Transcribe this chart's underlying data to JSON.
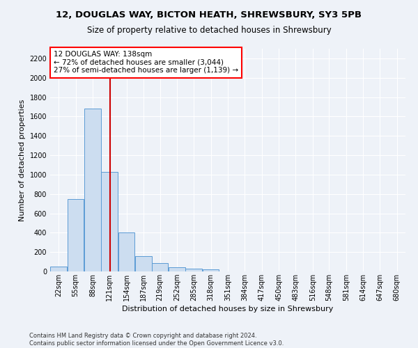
{
  "title_line1": "12, DOUGLAS WAY, BICTON HEATH, SHREWSBURY, SY3 5PB",
  "title_line2": "Size of property relative to detached houses in Shrewsbury",
  "xlabel": "Distribution of detached houses by size in Shrewsbury",
  "ylabel": "Number of detached properties",
  "bar_edge_color": "#5b9bd5",
  "bar_face_color": "#ccddf0",
  "vline_color": "#cc0000",
  "vline_x": 138,
  "bin_edges": [
    22,
    55,
    88,
    121,
    154,
    187,
    219,
    252,
    285,
    318,
    351,
    384,
    417,
    450,
    483,
    516,
    548,
    581,
    614,
    647,
    680
  ],
  "bin_labels": [
    "22sqm",
    "55sqm",
    "88sqm",
    "121sqm",
    "154sqm",
    "187sqm",
    "219sqm",
    "252sqm",
    "285sqm",
    "318sqm",
    "351sqm",
    "384sqm",
    "417sqm",
    "450sqm",
    "483sqm",
    "516sqm",
    "548sqm",
    "581sqm",
    "614sqm",
    "647sqm",
    "680sqm"
  ],
  "bar_heights": [
    50,
    750,
    1680,
    1030,
    400,
    155,
    85,
    40,
    30,
    20,
    0,
    0,
    0,
    0,
    0,
    0,
    0,
    0,
    0,
    0
  ],
  "ylim": [
    0,
    2300
  ],
  "yticks": [
    0,
    200,
    400,
    600,
    800,
    1000,
    1200,
    1400,
    1600,
    1800,
    2000,
    2200
  ],
  "annotation_title": "12 DOUGLAS WAY: 138sqm",
  "annotation_line1": "← 72% of detached houses are smaller (3,044)",
  "annotation_line2": "27% of semi-detached houses are larger (1,139) →",
  "footnote1": "Contains HM Land Registry data © Crown copyright and database right 2024.",
  "footnote2": "Contains public sector information licensed under the Open Government Licence v3.0.",
  "bg_color": "#eef2f8",
  "grid_color": "#ffffff",
  "title_fontsize": 9.5,
  "subtitle_fontsize": 8.5,
  "axis_label_fontsize": 8,
  "tick_fontsize": 7,
  "annotation_fontsize": 7.5,
  "footnote_fontsize": 6
}
